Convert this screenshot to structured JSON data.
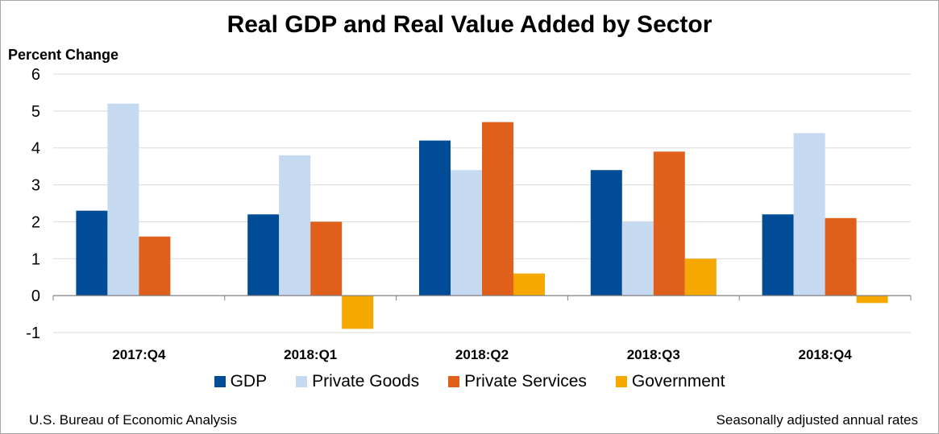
{
  "chart_data": {
    "type": "bar",
    "title": "Real GDP and Real Value Added by Sector",
    "ylabel": "Percent Change",
    "xlabel": "",
    "categories": [
      "2017:Q4",
      "2018:Q1",
      "2018:Q2",
      "2018:Q3",
      "2018:Q4"
    ],
    "series": [
      {
        "name": "GDP",
        "color": "#004c97",
        "values": [
          2.3,
          2.2,
          4.2,
          3.4,
          2.2
        ]
      },
      {
        "name": "Private Goods",
        "color": "#c5d9f1",
        "values": [
          5.2,
          3.8,
          3.4,
          2.0,
          4.4
        ]
      },
      {
        "name": "Private Services",
        "color": "#e0601b",
        "values": [
          1.6,
          2.0,
          4.7,
          3.9,
          2.1
        ]
      },
      {
        "name": "Government",
        "color": "#f5a800",
        "values": [
          0.0,
          -0.9,
          0.6,
          1.0,
          -0.2
        ]
      }
    ],
    "ylim": [
      -1,
      6
    ],
    "yticks": [
      "-1",
      "0",
      "1",
      "2",
      "3",
      "4",
      "5",
      "6"
    ],
    "grid": true,
    "legend_position": "bottom"
  },
  "footer": {
    "source": "U.S. Bureau of Economic Analysis",
    "note": "Seasonally adjusted annual rates"
  }
}
